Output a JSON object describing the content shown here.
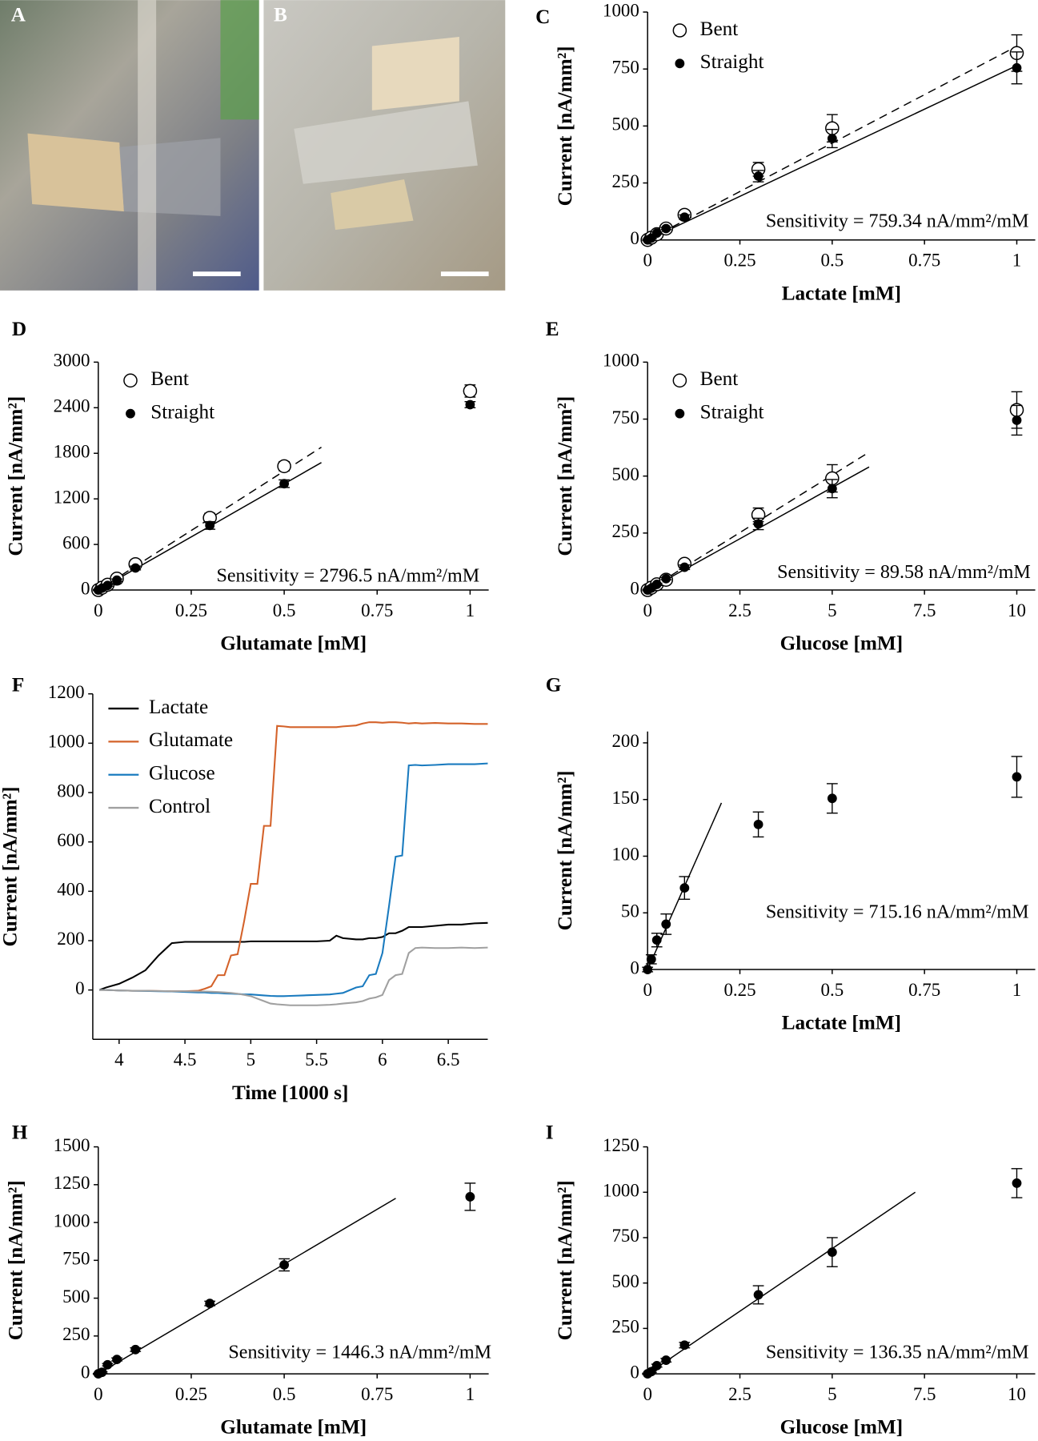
{
  "photos": [
    {
      "label": "A"
    },
    {
      "label": "B"
    }
  ],
  "chart_data": [
    {
      "label": "C",
      "type": "scatter",
      "x_label": "Lactate [mM]",
      "y_label": "Current [nA/mm²]",
      "annotation": "Sensitivity = 759.34 nA/mm²/mM",
      "x": [
        0,
        0.01,
        0.025,
        0.05,
        0.1,
        0.3,
        0.5,
        1
      ],
      "series": [
        {
          "name": "Bent",
          "marker": "open",
          "color": "#000000",
          "values": [
            0,
            10,
            25,
            50,
            110,
            310,
            490,
            820
          ],
          "errors": [
            5,
            5,
            6,
            8,
            12,
            30,
            60,
            80
          ]
        },
        {
          "name": "Straight",
          "marker": "filled",
          "color": "#000000",
          "values": [
            0,
            8,
            30,
            50,
            100,
            280,
            445,
            755
          ],
          "errors": [
            3,
            3,
            5,
            5,
            10,
            25,
            40,
            70
          ]
        }
      ],
      "fits": [
        {
          "style": "dashed",
          "x": [
            0,
            1
          ],
          "y": [
            0,
            850
          ]
        },
        {
          "style": "solid",
          "x": [
            0,
            1
          ],
          "y": [
            0,
            765
          ]
        }
      ],
      "xlim": [
        0,
        1.05
      ],
      "ylim": [
        0,
        1000
      ],
      "xticks": [
        0,
        0.25,
        0.5,
        0.75,
        1
      ],
      "yticks": [
        0,
        250,
        500,
        750,
        1000
      ],
      "legend": "upper left"
    },
    {
      "label": "D",
      "type": "scatter",
      "x_label": "Glutamate [mM]",
      "y_label": "Current [nA/mm²]",
      "annotation": "Sensitivity = 2796.5 nA/mm²/mM",
      "x": [
        0,
        0.01,
        0.025,
        0.05,
        0.1,
        0.3,
        0.5,
        1
      ],
      "series": [
        {
          "name": "Bent",
          "marker": "open",
          "color": "#000000",
          "values": [
            0,
            30,
            70,
            150,
            340,
            950,
            1630,
            2620
          ],
          "errors": [
            10,
            10,
            15,
            20,
            30,
            60,
            60,
            80
          ]
        },
        {
          "name": "Straight",
          "marker": "filled",
          "color": "#000000",
          "values": [
            0,
            25,
            60,
            130,
            290,
            850,
            1400,
            2440
          ],
          "errors": [
            8,
            8,
            10,
            15,
            25,
            50,
            50,
            40
          ]
        }
      ],
      "fits": [
        {
          "style": "dashed",
          "x": [
            0,
            0.6
          ],
          "y": [
            0,
            1880
          ]
        },
        {
          "style": "solid",
          "x": [
            0,
            0.6
          ],
          "y": [
            0,
            1678
          ]
        }
      ],
      "xlim": [
        0,
        1.05
      ],
      "ylim": [
        0,
        3000
      ],
      "xticks": [
        0,
        0.25,
        0.5,
        0.75,
        1
      ],
      "yticks": [
        0,
        600,
        1200,
        1800,
        2400,
        3000
      ],
      "legend": "upper left"
    },
    {
      "label": "E",
      "type": "scatter",
      "x_label": "Glucose [mM]",
      "y_label": "Current [nA/mm²]",
      "annotation": "Sensitivity = 89.58 nA/mm²/mM",
      "x": [
        0,
        0.1,
        0.25,
        0.5,
        1,
        3,
        5,
        10
      ],
      "series": [
        {
          "name": "Bent",
          "marker": "open",
          "color": "#000000",
          "values": [
            0,
            10,
            25,
            45,
            115,
            330,
            490,
            790
          ],
          "errors": [
            5,
            5,
            6,
            8,
            12,
            30,
            60,
            80
          ]
        },
        {
          "name": "Straight",
          "marker": "filled",
          "color": "#000000",
          "values": [
            0,
            8,
            25,
            50,
            100,
            290,
            445,
            745
          ],
          "errors": [
            3,
            3,
            5,
            5,
            10,
            25,
            40,
            65
          ]
        }
      ],
      "fits": [
        {
          "style": "dashed",
          "x": [
            0,
            6
          ],
          "y": [
            0,
            605
          ]
        },
        {
          "style": "solid",
          "x": [
            0,
            6
          ],
          "y": [
            0,
            540
          ]
        }
      ],
      "xlim": [
        0,
        10.5
      ],
      "ylim": [
        0,
        1000
      ],
      "xticks": [
        0,
        2.5,
        5,
        7.5,
        10
      ],
      "yticks": [
        0,
        250,
        500,
        750,
        1000
      ],
      "legend": "upper left"
    },
    {
      "label": "F",
      "type": "line",
      "x_label": "Time [1000 s]",
      "y_label": "Current [nA/mm²]",
      "x": [
        3.85,
        3.9,
        4.0,
        4.1,
        4.2,
        4.3,
        4.4,
        4.5,
        4.6,
        4.65,
        4.7,
        4.75,
        4.8,
        4.85,
        4.9,
        4.95,
        5.0,
        5.05,
        5.1,
        5.15,
        5.2,
        5.25,
        5.3,
        5.4,
        5.5,
        5.6,
        5.65,
        5.7,
        5.8,
        5.85,
        5.9,
        5.95,
        6.0,
        6.05,
        6.1,
        6.15,
        6.2,
        6.25,
        6.3,
        6.4,
        6.5,
        6.6,
        6.7,
        6.8
      ],
      "series": [
        {
          "name": "Lactate",
          "color": "#000000",
          "values": [
            0,
            10,
            25,
            50,
            80,
            140,
            190,
            195,
            195,
            195,
            195,
            195,
            195,
            195,
            195,
            195,
            197,
            197,
            197,
            197,
            197,
            197,
            197,
            197,
            197,
            200,
            220,
            210,
            205,
            205,
            210,
            210,
            215,
            230,
            230,
            240,
            255,
            255,
            255,
            260,
            265,
            265,
            270,
            272
          ]
        },
        {
          "name": "Glutamate",
          "color": "#d4622a",
          "values": [
            0,
            0,
            -2,
            -3,
            -3,
            -4,
            -5,
            -5,
            -3,
            5,
            15,
            60,
            60,
            140,
            145,
            280,
            430,
            430,
            665,
            665,
            1070,
            1068,
            1065,
            1065,
            1065,
            1065,
            1065,
            1068,
            1072,
            1080,
            1085,
            1085,
            1083,
            1085,
            1085,
            1083,
            1080,
            1082,
            1080,
            1082,
            1080,
            1080,
            1078,
            1078
          ]
        },
        {
          "name": "Glucose",
          "color": "#1a7bbf",
          "values": [
            0,
            0,
            -2,
            -3,
            -4,
            -5,
            -6,
            -8,
            -10,
            -10,
            -12,
            -12,
            -14,
            -15,
            -16,
            -18,
            -18,
            -20,
            -22,
            -24,
            -25,
            -25,
            -24,
            -22,
            -20,
            -18,
            -15,
            -12,
            10,
            15,
            60,
            65,
            150,
            340,
            540,
            545,
            910,
            912,
            910,
            912,
            915,
            915,
            915,
            918
          ]
        },
        {
          "name": "Control",
          "color": "#a0a0a0",
          "values": [
            0,
            0,
            -2,
            -3,
            -3,
            -4,
            -5,
            -5,
            -6,
            -6,
            -7,
            -8,
            -10,
            -12,
            -15,
            -20,
            -25,
            -35,
            -45,
            -55,
            -58,
            -60,
            -62,
            -62,
            -62,
            -60,
            -58,
            -55,
            -50,
            -45,
            -35,
            -30,
            -20,
            40,
            60,
            65,
            150,
            170,
            172,
            170,
            170,
            172,
            170,
            172
          ]
        }
      ],
      "xlim": [
        3.8,
        6.8
      ],
      "ylim": [
        -200,
        1200
      ],
      "xticks": [
        4,
        4.5,
        5,
        5.5,
        6,
        6.5
      ],
      "yticks": [
        0,
        200,
        400,
        600,
        800,
        1000,
        1200
      ],
      "legend": "upper left"
    },
    {
      "label": "G",
      "type": "scatter",
      "x_label": "Lactate [mM]",
      "y_label": "Current [nA/mm²]",
      "annotation": "Sensitivity = 715.16 nA/mm²/mM",
      "x": [
        0,
        0.01,
        0.025,
        0.05,
        0.1,
        0.3,
        0.5,
        1
      ],
      "marker": "filled",
      "color": "#000000",
      "values": [
        0,
        9,
        26,
        40,
        72,
        128,
        151,
        170
      ],
      "errors": [
        2,
        4,
        6,
        9,
        10,
        11,
        13,
        18
      ],
      "fits": [
        {
          "style": "solid",
          "x": [
            0,
            0.2
          ],
          "y": [
            0,
            147
          ]
        }
      ],
      "xlim": [
        0,
        1.05
      ],
      "ylim": [
        0,
        210
      ],
      "xticks": [
        0,
        0.25,
        0.5,
        0.75,
        1
      ],
      "yticks": [
        0,
        50,
        100,
        150,
        200
      ]
    },
    {
      "label": "H",
      "type": "scatter",
      "x_label": "Glutamate [mM]",
      "y_label": "Current [nA/mm²]",
      "annotation": "Sensitivity = 1446.3 nA/mm²/mM",
      "x": [
        0,
        0.01,
        0.025,
        0.05,
        0.1,
        0.3,
        0.5,
        1
      ],
      "marker": "filled",
      "color": "#000000",
      "values": [
        0,
        10,
        60,
        95,
        160,
        465,
        720,
        1170
      ],
      "errors": [
        3,
        5,
        8,
        10,
        12,
        15,
        40,
        90
      ],
      "fits": [
        {
          "style": "solid",
          "x": [
            0,
            0.8
          ],
          "y": [
            0,
            1160
          ]
        }
      ],
      "xlim": [
        0,
        1.05
      ],
      "ylim": [
        0,
        1500
      ],
      "xticks": [
        0,
        0.25,
        0.5,
        0.75,
        1
      ],
      "yticks": [
        0,
        250,
        500,
        750,
        1000,
        1250,
        1500
      ]
    },
    {
      "label": "I",
      "type": "scatter",
      "x_label": "Glucose [mM]",
      "y_label": "Current [nA/mm²]",
      "annotation": "Sensitivity = 136.35 nA/mm²/mM",
      "x": [
        0,
        0.1,
        0.25,
        0.5,
        1,
        3,
        5,
        10
      ],
      "marker": "filled",
      "color": "#000000",
      "values": [
        0,
        12,
        45,
        75,
        158,
        435,
        670,
        1050
      ],
      "errors": [
        3,
        5,
        8,
        10,
        15,
        50,
        80,
        80
      ],
      "fits": [
        {
          "style": "solid",
          "x": [
            0,
            7.25
          ],
          "y": [
            0,
            1000
          ]
        }
      ],
      "xlim": [
        0,
        10.5
      ],
      "ylim": [
        0,
        1250
      ],
      "xticks": [
        0,
        2.5,
        5,
        7.5,
        10
      ],
      "yticks": [
        0,
        250,
        500,
        750,
        1000,
        1250
      ]
    }
  ]
}
